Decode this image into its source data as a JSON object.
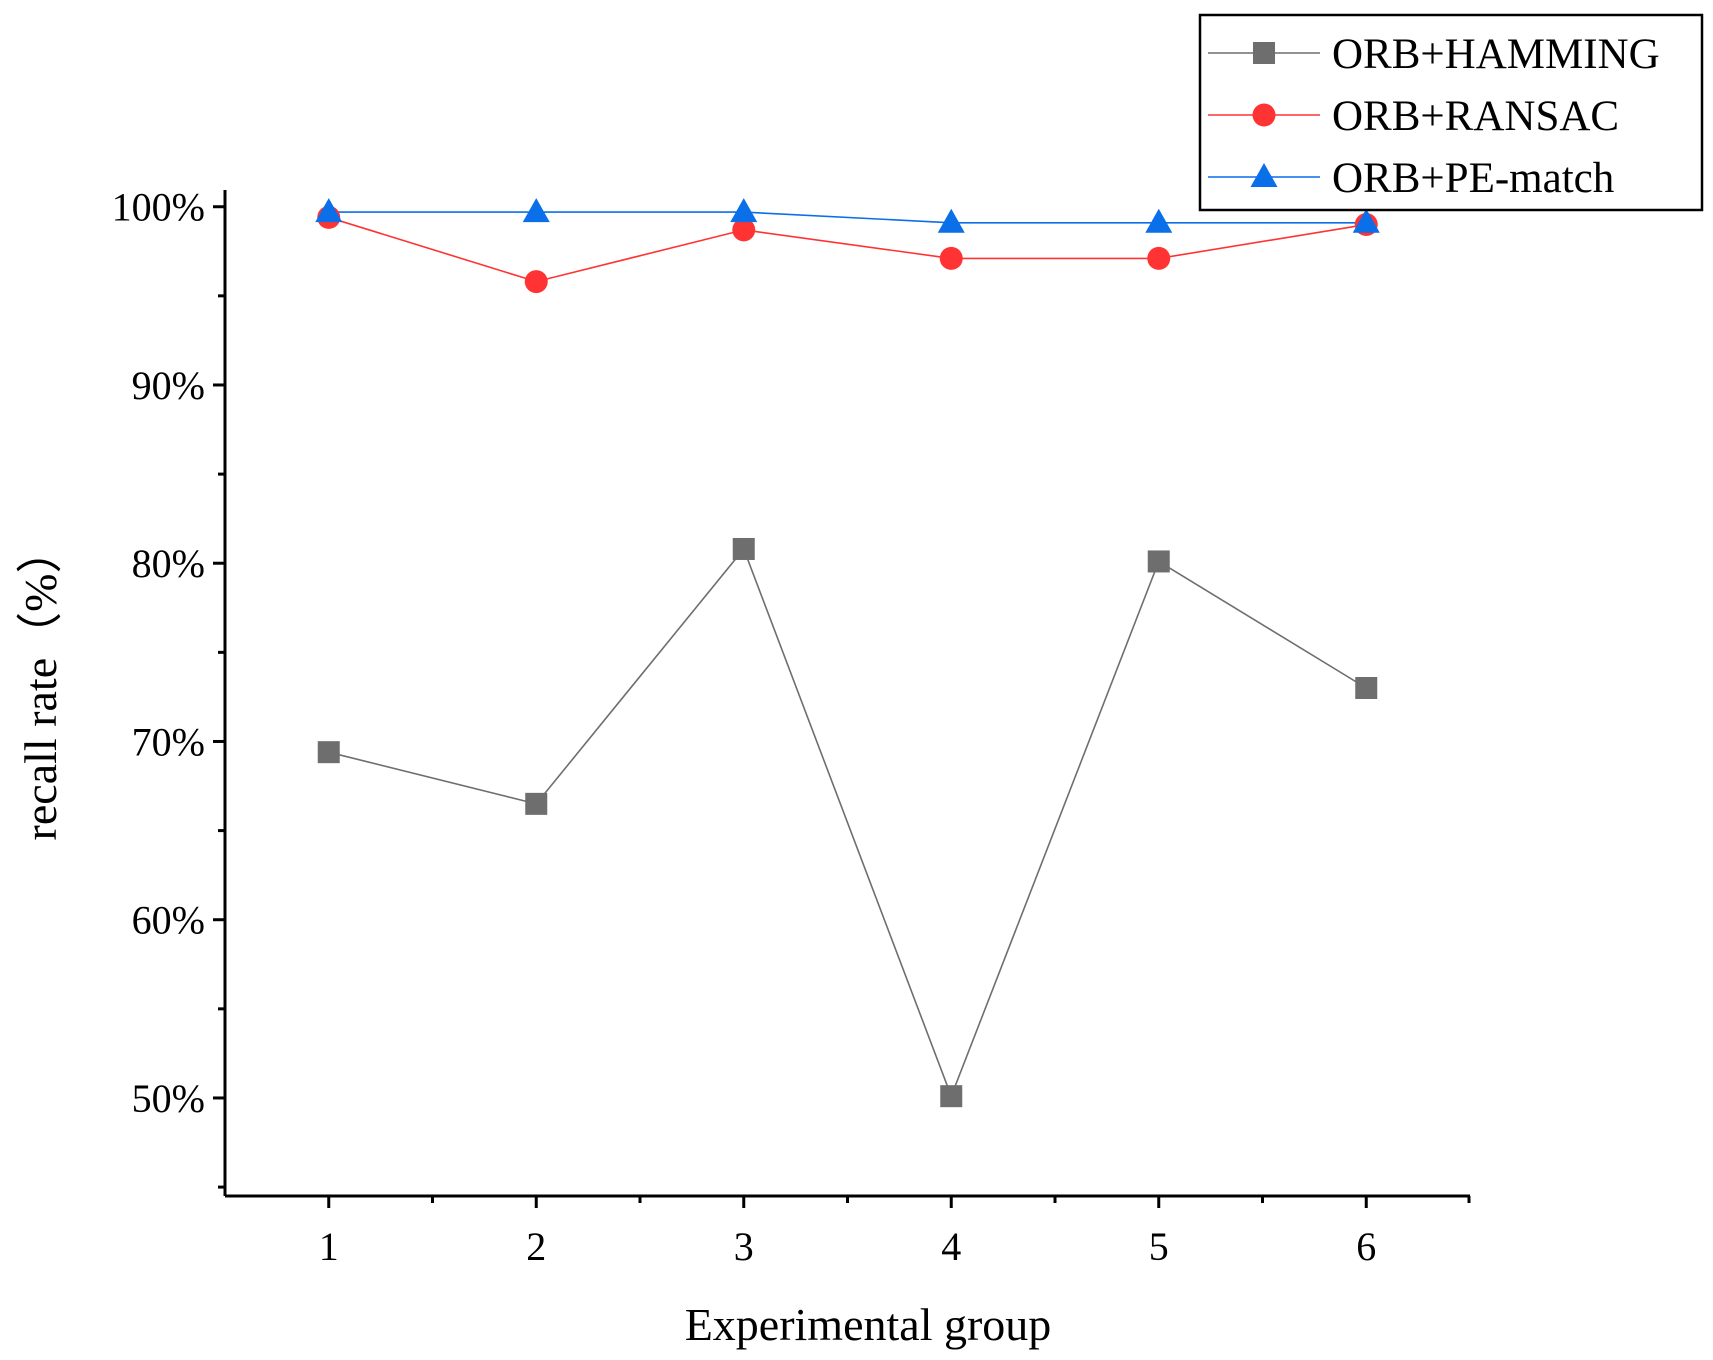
{
  "chart_data": {
    "type": "line",
    "title": "",
    "xlabel": "Experimental group",
    "ylabel": "recall rate（%）",
    "x": [
      1,
      2,
      3,
      4,
      5,
      6
    ],
    "x_tick_labels": [
      "1",
      "2",
      "3",
      "4",
      "5",
      "6"
    ],
    "xlim": [
      0.5,
      6.5
    ],
    "ylim": [
      44.5,
      101.5
    ],
    "y_ticks": [
      50,
      60,
      70,
      80,
      90,
      100
    ],
    "y_tick_labels": [
      "50%",
      "60%",
      "70%",
      "80%",
      "90%",
      "100%"
    ],
    "grid": false,
    "legend_position": "top-right",
    "series": [
      {
        "name": "ORB+HAMMING",
        "marker": "square",
        "color": "#6e6e6e",
        "values": [
          69.4,
          66.5,
          80.8,
          50.1,
          80.1,
          73.0
        ]
      },
      {
        "name": "ORB+RANSAC",
        "marker": "circle",
        "color": "#ff3333",
        "values": [
          99.4,
          95.8,
          98.7,
          97.1,
          97.1,
          99.0
        ]
      },
      {
        "name": "ORB+PE-match",
        "marker": "triangle",
        "color": "#0a6fe8",
        "values": [
          99.7,
          99.7,
          99.7,
          99.1,
          99.1,
          99.1
        ]
      }
    ]
  }
}
